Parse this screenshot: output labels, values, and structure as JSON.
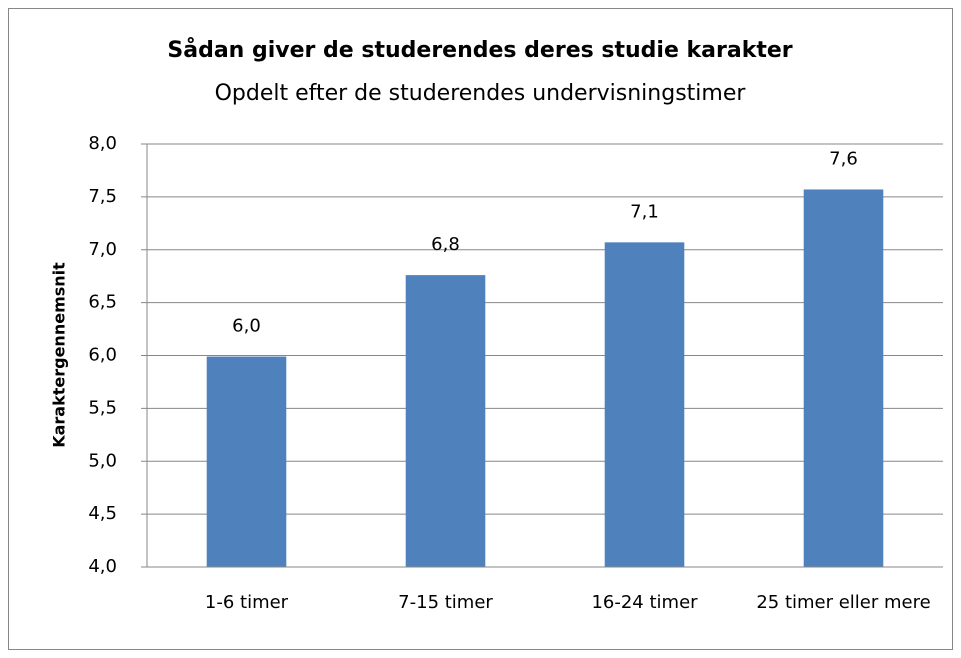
{
  "chart_data": {
    "type": "bar",
    "title": "Sådan giver de  studerendes deres studie karakter",
    "subtitle": "Opdelt efter de studerendes undervisningstimer",
    "y_label": "Karaktergennemsnit",
    "categories": [
      "1-6 timer",
      "7-15 timer",
      "16-24 timer",
      "25 timer eller mere"
    ],
    "values": [
      5.99,
      6.76,
      7.07,
      7.57
    ],
    "value_labels": [
      "6,0",
      "6,8",
      "7,1",
      "7,6"
    ],
    "color": "#4f81bd",
    "ylim": [
      4,
      8
    ],
    "yticks": [
      {
        "value": 4,
        "label": "4,0"
      },
      {
        "value": 4.5,
        "label": "4,5"
      },
      {
        "value": 5,
        "label": "5,0"
      },
      {
        "value": 5.5,
        "label": "5,5"
      },
      {
        "value": 6,
        "label": "6,0"
      },
      {
        "value": 6.5,
        "label": "6,5"
      },
      {
        "value": 7,
        "label": "7,0"
      },
      {
        "value": 7.5,
        "label": "7,5"
      },
      {
        "value": 8,
        "label": "8,0"
      }
    ],
    "grid": true
  }
}
